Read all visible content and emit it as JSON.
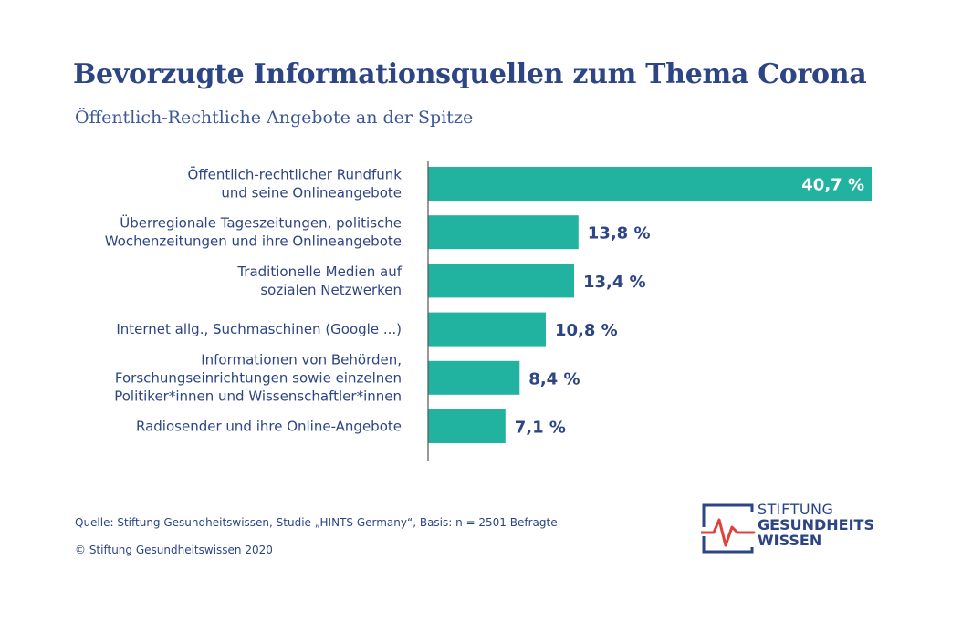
{
  "title": "Bevorzugte Informationsquellen zum Thema Corona",
  "subtitle": "Öffentlich-Rechtliche Angebote an der Spitze",
  "chart_data": {
    "type": "bar",
    "orientation": "horizontal",
    "categories": [
      [
        "Öffentlich-rechtlicher Rundfunk",
        "und seine Onlineangebote"
      ],
      [
        "Überregionale Tageszeitungen, politische",
        "Wochenzeitungen und ihre Onlineangebote"
      ],
      [
        "Traditionelle Medien auf",
        "sozialen Netzwerken"
      ],
      [
        "Internet allg., Suchmaschinen (Google ...)"
      ],
      [
        "Informationen von Behörden,",
        "Forschungseinrichtungen sowie einzelnen",
        "Politiker*innen und Wissenschaftler*innen"
      ],
      [
        "Radiosender und ihre Online-Angebote"
      ]
    ],
    "values": [
      40.7,
      13.8,
      13.4,
      10.8,
      8.4,
      7.1
    ],
    "value_labels": [
      "40,7 %",
      "13,8 %",
      "13,4 %",
      "10,8 %",
      "8,4 %",
      "7,1 %"
    ],
    "unit": "%",
    "xlim": [
      0,
      40.7
    ],
    "bar_color": "#22b2a0",
    "label_color": "#2d4585",
    "inside_label_color": "#ffffff",
    "grid": false,
    "legend": "none"
  },
  "footer": {
    "source": "Quelle: Stiftung Gesundheitswissen, Studie „HINTS Germany“, Basis: n = 2501 Befragte",
    "copyright": "© Stiftung Gesundheitswissen 2020"
  },
  "logo": {
    "line1": "STIFTUNG",
    "line2": "GESUNDHEITS",
    "line3": "WISSEN",
    "frame_color": "#2d4585",
    "pulse_color": "#e2403b"
  }
}
